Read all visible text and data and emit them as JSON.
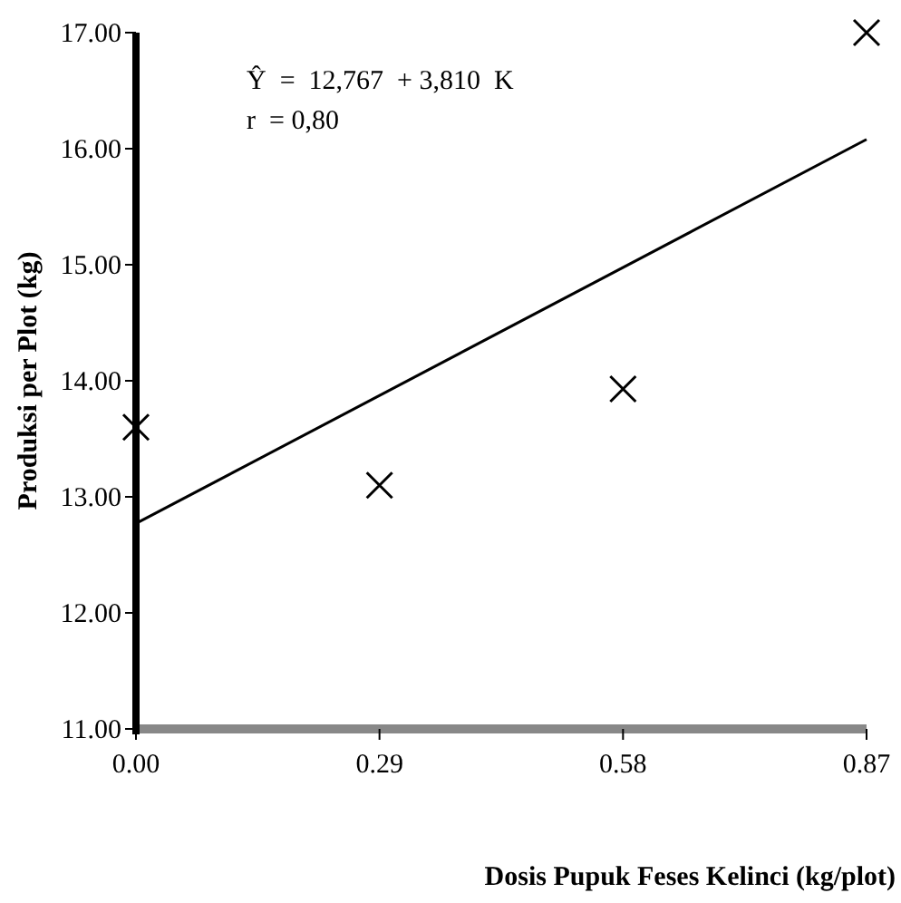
{
  "chart_data": {
    "type": "scatter",
    "xlabel": "Dosis Pupuk Feses Kelinci (kg/plot)",
    "ylabel": "Produksi per Plot (kg)",
    "annotations": [
      "Ŷ  =  12,767  + 3,810  K",
      "r  = 0,80"
    ],
    "xlim": [
      0,
      0.87
    ],
    "ylim": [
      11,
      17
    ],
    "xticks": [
      {
        "value": 0,
        "label": "0.00"
      },
      {
        "value": 0.29,
        "label": "0.29"
      },
      {
        "value": 0.58,
        "label": "0.58"
      },
      {
        "value": 0.87,
        "label": "0.87"
      }
    ],
    "yticks": [
      {
        "value": 11,
        "label": "11.00"
      },
      {
        "value": 12,
        "label": "12.00"
      },
      {
        "value": 13,
        "label": "13.00"
      },
      {
        "value": 14,
        "label": "14.00"
      },
      {
        "value": 15,
        "label": "15.00"
      },
      {
        "value": 16,
        "label": "16.00"
      },
      {
        "value": 17,
        "label": "17.00"
      }
    ],
    "marker": "cross",
    "grid": false,
    "series": [
      {
        "color": "#000000",
        "x": [
          0,
          0.29,
          0.58,
          0.87
        ],
        "values": [
          13.6,
          13.1,
          13.93,
          17.0
        ]
      },
      {
        "type": "line",
        "marker": "none",
        "color": "#000000",
        "x": [
          0,
          0.87
        ],
        "values": [
          12.77,
          16.08
        ]
      }
    ]
  }
}
